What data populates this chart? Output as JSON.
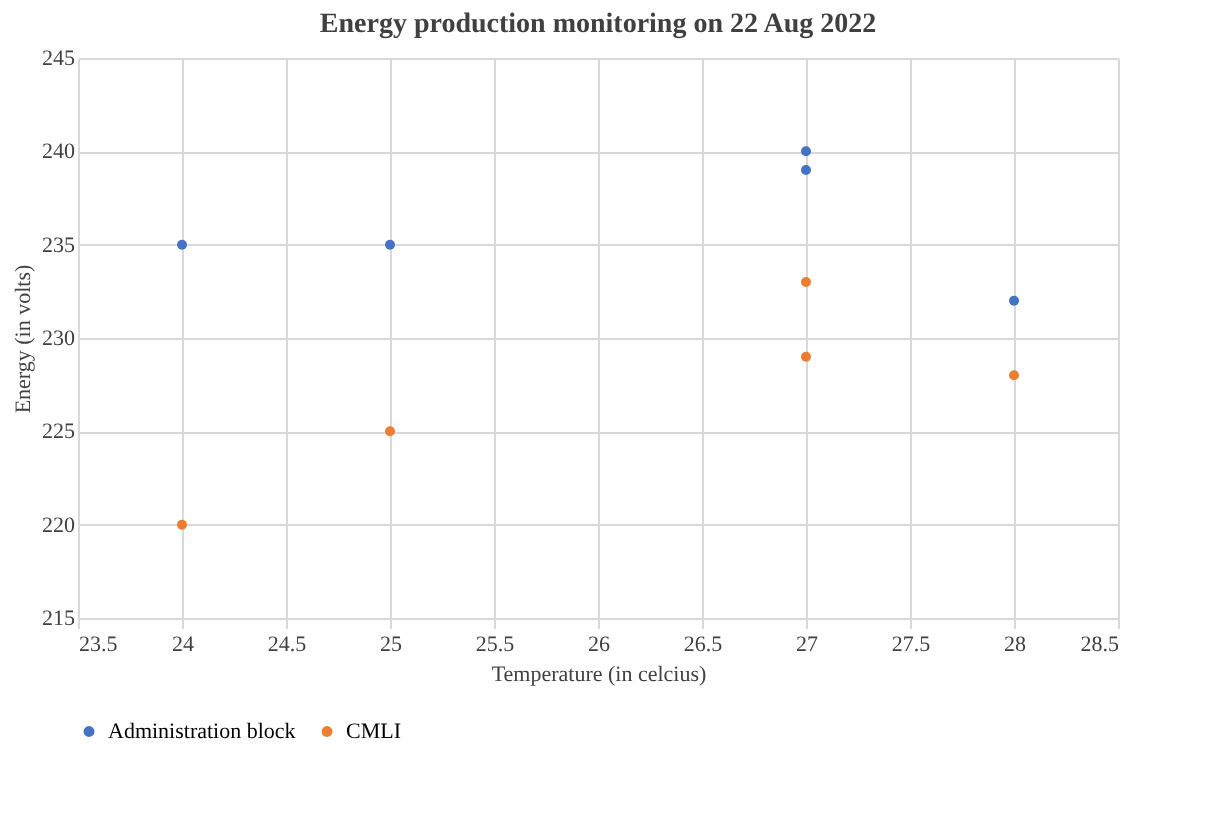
{
  "chart_data": {
    "type": "scatter",
    "title": "Energy production monitoring on 22 Aug 2022",
    "xlabel": "Temperature  (in celcius)",
    "ylabel": "Energy  (in volts)",
    "x": [
      24,
      25,
      27,
      27,
      28
    ],
    "series": [
      {
        "name": "Administration block",
        "color": "#4472c4",
        "values": [
          235,
          235,
          240,
          239,
          232
        ]
      },
      {
        "name": "CMLI",
        "color": "#ed7d31",
        "values": [
          220,
          225,
          233,
          229,
          228
        ]
      }
    ],
    "xlim": [
      23.5,
      28.5
    ],
    "xticks": [
      23.5,
      24,
      24.5,
      25,
      25.5,
      26,
      26.5,
      27,
      27.5,
      28,
      28.5
    ],
    "ylim": [
      215,
      245
    ],
    "yticks": [
      215,
      220,
      225,
      230,
      235,
      240,
      245
    ],
    "grid": true,
    "legend": "bottom",
    "marker": "circle"
  }
}
